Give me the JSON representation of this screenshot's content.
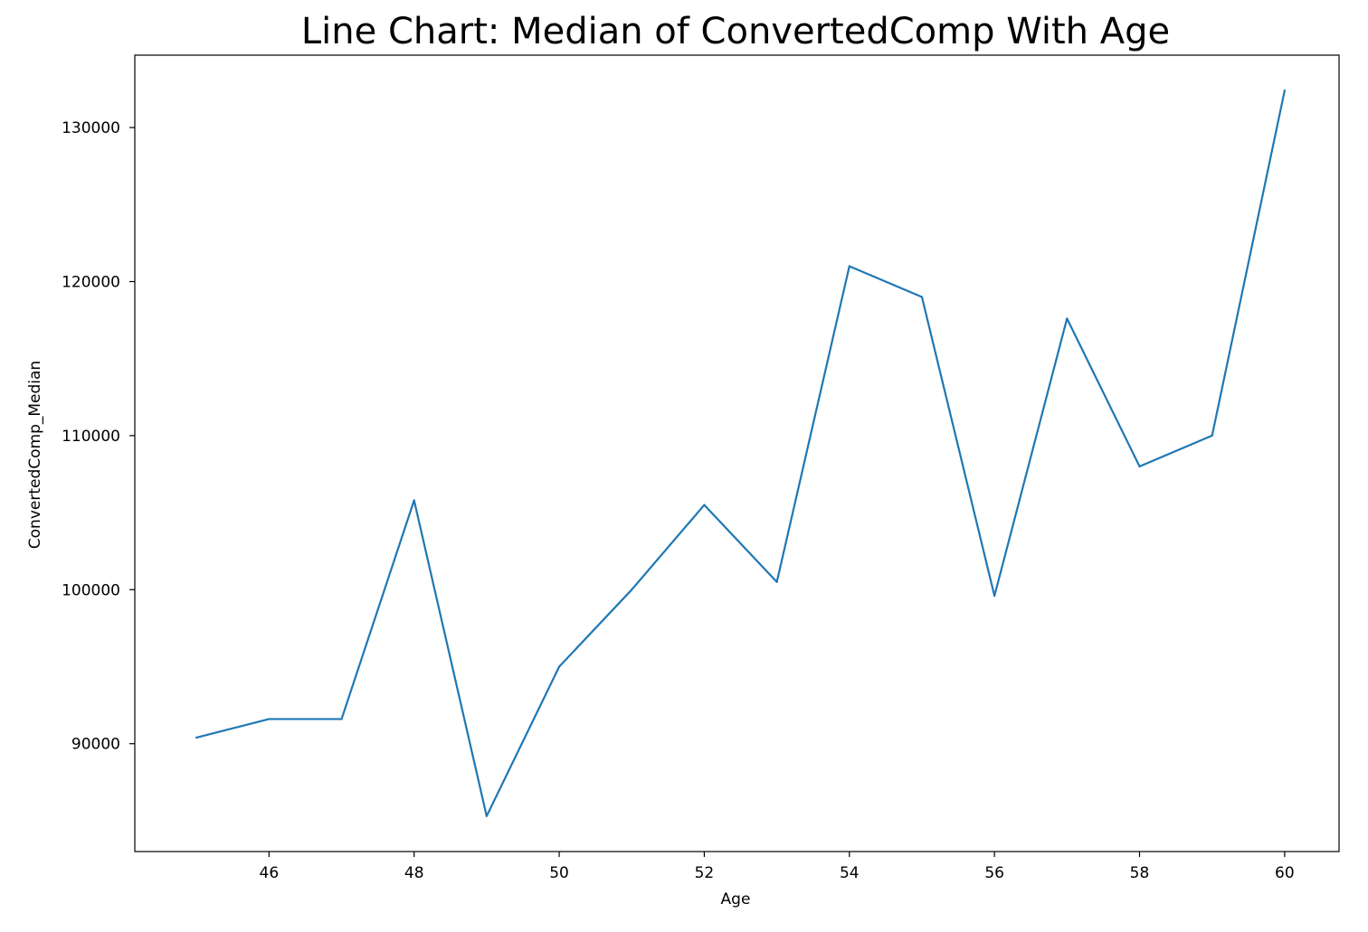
{
  "chart_data": {
    "type": "line",
    "title": "Line Chart: Median of ConvertedComp With Age",
    "xlabel": "Age",
    "ylabel": "ConvertedComp_Median",
    "x": [
      45,
      46,
      47,
      48,
      49,
      50,
      51,
      52,
      53,
      54,
      55,
      56,
      57,
      58,
      59,
      60
    ],
    "series": [
      {
        "values": [
          90400,
          91600,
          91600,
          105800,
          85300,
          95000,
          100000,
          105500,
          100500,
          121000,
          119000,
          99600,
          117600,
          108000,
          110000,
          132400
        ]
      }
    ],
    "xlim": [
      44.15,
      60.75
    ],
    "ylim": [
      83000,
      134700
    ],
    "xticks": [
      46,
      48,
      50,
      52,
      54,
      56,
      58,
      60
    ],
    "yticks": [
      90000,
      100000,
      110000,
      120000,
      130000
    ],
    "grid": false,
    "line_color": "#1f77b4"
  }
}
